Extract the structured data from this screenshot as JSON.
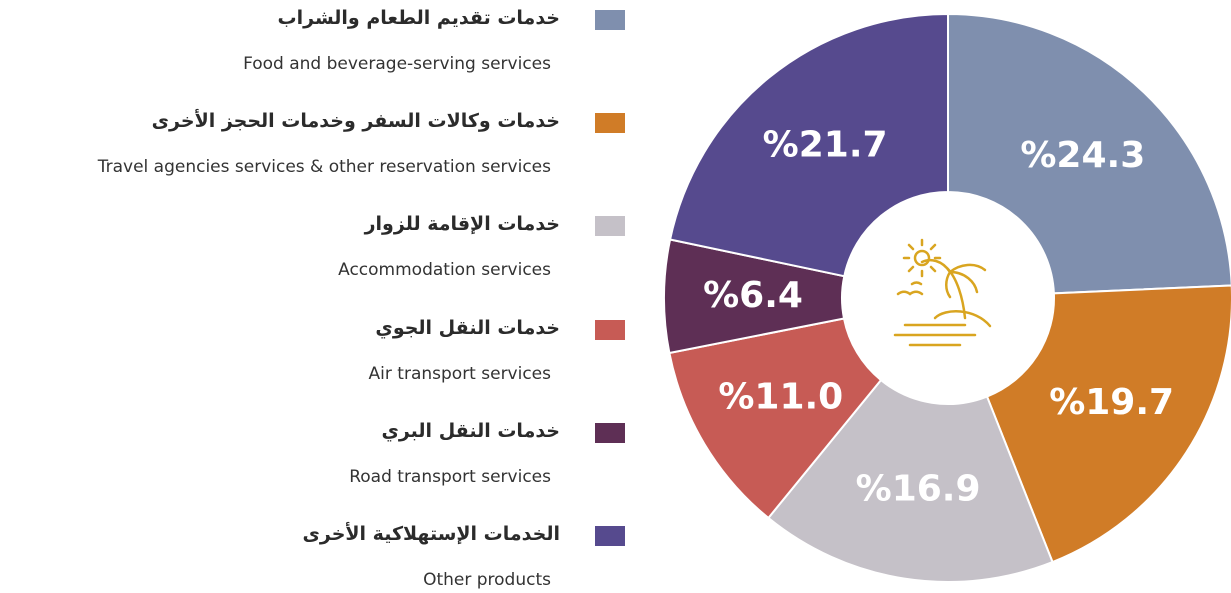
{
  "chart_data": {
    "type": "donut",
    "categories": [
      "Food and beverage-serving services",
      "Travel agencies services & other reservation services",
      "Accommodation services",
      "Air transport services",
      "Road transport services",
      "Other products"
    ],
    "categories_ar": [
      "خدمات تقديم الطعام والشراب",
      "خدمات وكالات السفر وخدمات الحجز الأخرى",
      "خدمات الإقامة للزوار",
      "خدمات النقل الجوي",
      "خدمات النقل البري",
      "الخدمات الإستهلاكية الأخرى"
    ],
    "values": [
      24.3,
      19.7,
      16.9,
      11.0,
      6.4,
      21.7
    ],
    "value_labels": [
      "%24.3",
      "%19.7",
      "%16.9",
      "%11.0",
      "%6.4",
      "%21.7"
    ],
    "colors": [
      "#7f8fae",
      "#d07c27",
      "#c5c1c8",
      "#c75b55",
      "#5e2f55",
      "#564a8e"
    ]
  }
}
